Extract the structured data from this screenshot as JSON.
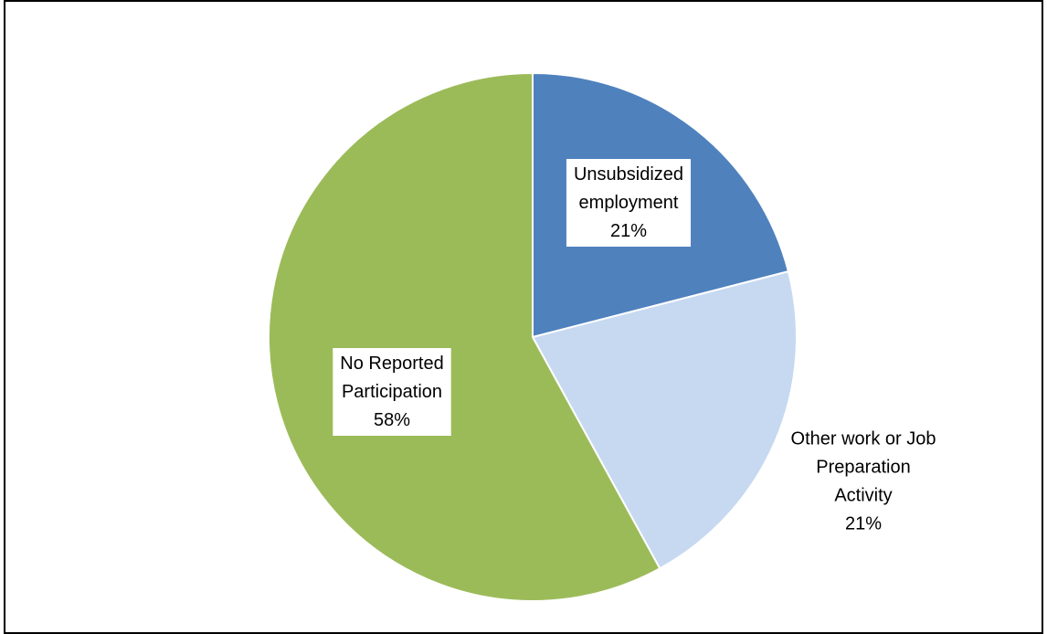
{
  "chart_data": {
    "type": "pie",
    "title": "",
    "slices": [
      {
        "name": "Unsubsidized employment",
        "label_lines": [
          "Unsubsidized",
          "employment",
          "21%"
        ],
        "value": 21,
        "color": "#4F81BD"
      },
      {
        "name": "Other work or Job Preparation Activity",
        "label_lines": [
          "Other work or Job",
          "Preparation",
          "Activity",
          "21%"
        ],
        "value": 21,
        "color": "#C6D9F1"
      },
      {
        "name": "No Reported Participation",
        "label_lines": [
          "No Reported",
          "Participation",
          "58%"
        ],
        "value": 58,
        "color": "#9BBB59"
      }
    ],
    "start_angle": "12 o'clock",
    "direction": "clockwise",
    "legend": "none",
    "data_labels": "category name and percentage"
  }
}
